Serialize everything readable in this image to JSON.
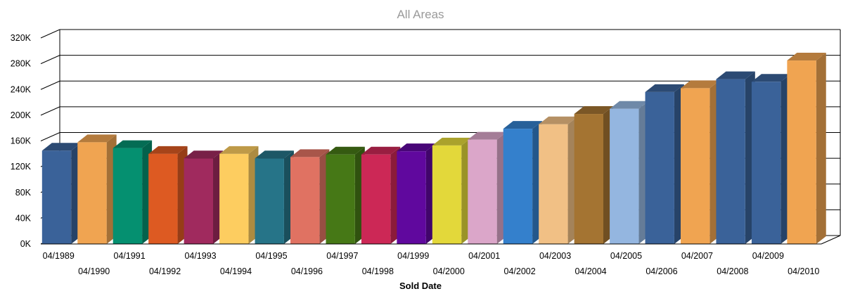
{
  "chart_data": {
    "type": "bar",
    "title": "",
    "subtitle": "All Areas",
    "xlabel": "Sold Date",
    "ylabel": "",
    "ylim": [
      0,
      320000
    ],
    "ytick_labels": [
      "0K",
      "40K",
      "80K",
      "120K",
      "160K",
      "200K",
      "240K",
      "280K",
      "320K"
    ],
    "grid": true,
    "categories": [
      "04/1989",
      "04/1990",
      "04/1991",
      "04/1992",
      "04/1993",
      "04/1994",
      "04/1995",
      "04/1996",
      "04/1997",
      "04/1998",
      "04/1999",
      "04/2000",
      "04/2001",
      "04/2002",
      "04/2003",
      "04/2004",
      "04/2005",
      "04/2006",
      "04/2007",
      "04/2008",
      "04/2009",
      "04/2010"
    ],
    "values": [
      145000,
      158000,
      149000,
      140000,
      133000,
      140000,
      133000,
      135000,
      139000,
      139000,
      144000,
      153000,
      162000,
      179000,
      186000,
      202000,
      210000,
      236000,
      242000,
      256000,
      252000,
      285000
    ],
    "colors": [
      "#3a6299",
      "#f0a451",
      "#059070",
      "#dd5a22",
      "#a02a5e",
      "#fdcd60",
      "#267488",
      "#e07262",
      "#467816",
      "#cc2856",
      "#60089e",
      "#e3d83a",
      "#dba6c9",
      "#3480cc",
      "#f1c085",
      "#a47432",
      "#94b6e0",
      "#3a6299",
      "#f0a451",
      "#3a6299",
      "#3a6299",
      "#f0a451"
    ]
  }
}
